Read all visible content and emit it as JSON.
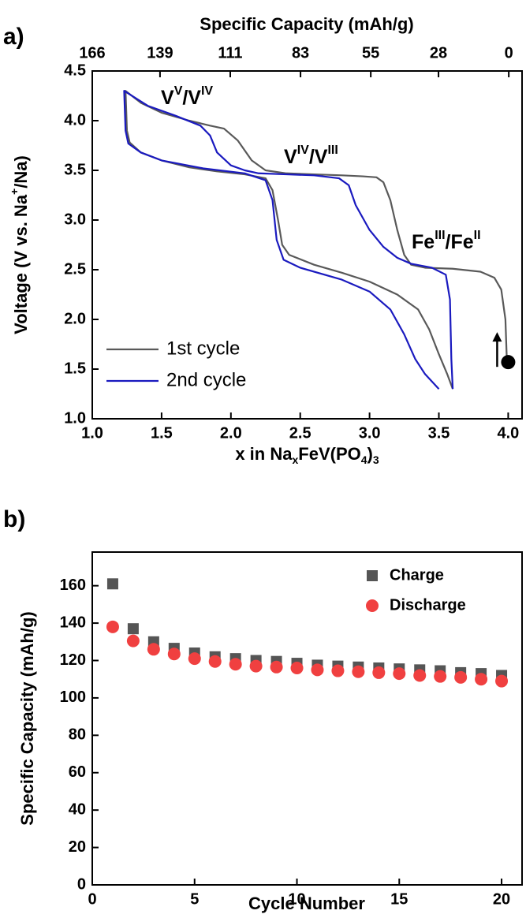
{
  "chart_data": [
    {
      "type": "line",
      "panel_label": "a)",
      "xlabel": {
        "parts": [
          "x in Na",
          "x",
          "FeV(PO",
          "4",
          ")",
          "3"
        ],
        "styles": [
          "normal",
          "sub",
          "normal",
          "sub",
          "normal",
          "sub"
        ]
      },
      "ylabel": {
        "parts": [
          "Voltage (V vs. Na",
          "+",
          "/Na)"
        ],
        "styles": [
          "normal",
          "super",
          "normal"
        ]
      },
      "x2label": "Specific Capacity (mAh/g)",
      "xlim": [
        1.0,
        4.1
      ],
      "xticks": [
        {
          "value": 1.0,
          "label": "1.0"
        },
        1.5,
        {
          "value": 2.0,
          "label": "2.0"
        },
        2.5,
        {
          "value": 3.0,
          "label": "3.0"
        },
        3.5,
        {
          "value": 4.0,
          "label": "4.0"
        }
      ],
      "ylim": [
        1.0,
        4.5
      ],
      "yticks": [
        {
          "value": 1.0,
          "label": "1.0"
        },
        1.5,
        {
          "value": 2.0,
          "label": "2.0"
        },
        2.5,
        {
          "value": 3.0,
          "label": "3.0"
        },
        3.5,
        {
          "value": 4.0,
          "label": "4.0"
        },
        4.5
      ],
      "x2lim": [
        166,
        -5.3
      ],
      "x2ticks": [
        166,
        139,
        111,
        83,
        55,
        28,
        0
      ],
      "legend": "lower left",
      "series": [
        {
          "name": "1st cycle",
          "color": "#595959",
          "x": [
            3.99,
            3.98,
            3.95,
            3.9,
            3.8,
            3.6,
            3.4,
            3.3,
            3.25,
            3.2,
            3.15,
            3.1,
            3.05,
            2.95,
            2.8,
            2.6,
            2.4,
            2.25,
            2.15,
            2.05,
            1.95,
            1.85,
            1.7,
            1.5,
            1.35,
            1.24,
            1.25,
            1.27,
            1.35,
            1.5,
            1.7,
            1.9,
            2.1,
            2.25,
            2.3,
            2.34,
            2.37,
            2.42,
            2.6,
            2.8,
            3.0,
            3.2,
            3.35,
            3.43,
            3.5,
            3.56,
            3.6
          ],
          "values": [
            1.6,
            2.0,
            2.3,
            2.42,
            2.48,
            2.51,
            2.52,
            2.55,
            2.65,
            2.9,
            3.2,
            3.38,
            3.43,
            3.44,
            3.45,
            3.46,
            3.47,
            3.5,
            3.6,
            3.8,
            3.92,
            3.95,
            4.0,
            4.08,
            4.18,
            4.3,
            3.9,
            3.78,
            3.68,
            3.6,
            3.53,
            3.49,
            3.46,
            3.42,
            3.3,
            3.0,
            2.75,
            2.65,
            2.55,
            2.47,
            2.38,
            2.25,
            2.1,
            1.9,
            1.65,
            1.45,
            1.3
          ]
        },
        {
          "name": "2nd cycle",
          "color": "#1a1abf",
          "x": [
            3.6,
            3.59,
            3.58,
            3.55,
            3.45,
            3.3,
            3.2,
            3.1,
            3.0,
            2.9,
            2.85,
            2.78,
            2.6,
            2.4,
            2.2,
            2.1,
            2.0,
            1.9,
            1.85,
            1.78,
            1.6,
            1.4,
            1.23,
            1.24,
            1.26,
            1.35,
            1.5,
            1.8,
            2.1,
            2.25,
            2.3,
            2.33,
            2.38,
            2.5,
            2.8,
            3.0,
            3.15,
            3.25,
            3.33,
            3.4,
            3.5
          ],
          "values": [
            1.3,
            1.6,
            2.2,
            2.45,
            2.52,
            2.56,
            2.62,
            2.73,
            2.9,
            3.15,
            3.35,
            3.42,
            3.45,
            3.46,
            3.47,
            3.5,
            3.55,
            3.68,
            3.85,
            3.95,
            4.05,
            4.15,
            4.3,
            3.9,
            3.77,
            3.68,
            3.6,
            3.52,
            3.47,
            3.4,
            3.2,
            2.8,
            2.6,
            2.52,
            2.4,
            2.28,
            2.1,
            1.85,
            1.6,
            1.45,
            1.3
          ]
        }
      ],
      "start_point": {
        "x": 4.0,
        "y": 1.57,
        "color": "#000000"
      },
      "annotations": [
        {
          "parts": [
            "V",
            "V",
            "/V",
            "IV"
          ],
          "styles": [
            "normal",
            "super",
            "normal",
            "super"
          ],
          "color": "#4b6b2a"
        },
        {
          "parts": [
            "V",
            "IV",
            "/V",
            "III"
          ],
          "styles": [
            "normal",
            "super",
            "normal",
            "super"
          ],
          "color": "#4b6b2a"
        },
        {
          "parts": [
            "Fe",
            "III",
            "/Fe",
            "II"
          ],
          "styles": [
            "normal",
            "super",
            "normal",
            "super"
          ],
          "color": "#8a6a00"
        }
      ]
    },
    {
      "type": "scatter",
      "panel_label": "b)",
      "xlabel": "Cycle Number",
      "ylabel": "Specific Capacity (mAh/g)",
      "xlim": [
        0,
        21
      ],
      "xticks": [
        0,
        5,
        10,
        15,
        20
      ],
      "ylim": [
        0,
        178
      ],
      "yticks": [
        0,
        20,
        40,
        60,
        80,
        100,
        120,
        140,
        160
      ],
      "legend": "upper right",
      "x": [
        1,
        2,
        3,
        4,
        5,
        6,
        7,
        8,
        9,
        10,
        11,
        12,
        13,
        14,
        15,
        16,
        17,
        18,
        19,
        20
      ],
      "series": [
        {
          "name": "Charge",
          "color": "#555555",
          "marker": "square",
          "values": [
            161,
            137,
            130,
            126.5,
            124,
            122,
            121,
            120,
            119.5,
            118.5,
            117.5,
            117,
            116.5,
            116,
            115.5,
            115,
            114.5,
            113.5,
            113,
            112
          ]
        },
        {
          "name": "Discharge",
          "color": "#f04040",
          "marker": "circle",
          "values": [
            138,
            130.5,
            126,
            123.5,
            121,
            119.5,
            118,
            117,
            116.5,
            116,
            115,
            114.5,
            114,
            113.5,
            113,
            112,
            111.5,
            111,
            110,
            109
          ]
        }
      ]
    }
  ]
}
